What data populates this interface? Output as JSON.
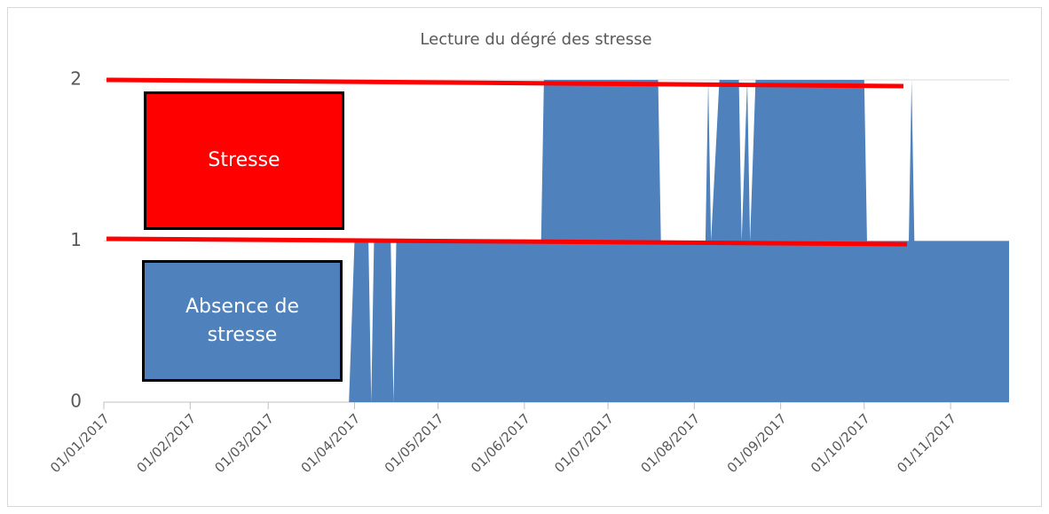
{
  "chart_data": {
    "type": "area",
    "title": "Lecture du dégré des stresse",
    "x": [
      "30/03/2017",
      "01/04/2017",
      "06/04/2017",
      "07/04/2017",
      "08/04/2017",
      "14/04/2017",
      "15/04/2017",
      "16/04/2017",
      "07/06/2017",
      "08/06/2017",
      "19/07/2017",
      "20/07/2017",
      "05/08/2017",
      "06/08/2017",
      "07/08/2017",
      "10/08/2017",
      "17/08/2017",
      "18/08/2017",
      "20/08/2017",
      "21/08/2017",
      "23/08/2017",
      "01/10/2017",
      "02/10/2017",
      "17/10/2017",
      "18/10/2017",
      "19/10/2017",
      "22/11/2017"
    ],
    "values": [
      0,
      1,
      1,
      0,
      1,
      1,
      0,
      1,
      1,
      2,
      2,
      1,
      1,
      2,
      1,
      2,
      2,
      1,
      2,
      1,
      2,
      2,
      1,
      1,
      2,
      1,
      1
    ],
    "color": "#4f81bd",
    "xlim": [
      "01/01/2017",
      "22/11/2017"
    ],
    "xticks": [
      "01/01/2017",
      "01/02/2017",
      "01/03/2017",
      "01/04/2017",
      "01/05/2017",
      "01/06/2017",
      "01/07/2017",
      "01/08/2017",
      "01/09/2017",
      "01/10/2017",
      "01/11/2017"
    ],
    "ylim": [
      0,
      2
    ],
    "yticks": [
      0,
      1,
      2
    ],
    "grid": true,
    "annotations": [
      "Stresse",
      "Absence de stresse"
    ]
  }
}
